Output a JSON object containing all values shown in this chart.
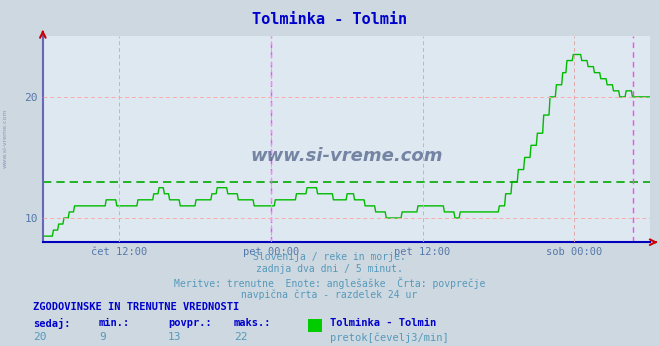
{
  "title": "Tolminka - Tolmin",
  "title_color": "#0000cc",
  "bg_color": "#cdd8e0",
  "plot_bg_color": "#dde8f0",
  "line_color": "#00bb00",
  "avg_line_color": "#00aa00",
  "avg_value": 13,
  "grid_color_h": "#ffaaaa",
  "grid_color_v": "#ddaaaa",
  "vline_color": "#ff44ff",
  "bottom_spine_color": "#0000bb",
  "left_spine_color": "#6666bb",
  "arrow_color": "#cc0000",
  "ylim_min": 8,
  "ylim_max": 25,
  "yticks": [
    10,
    20
  ],
  "x_tick_labels": [
    "čet 12:00",
    "pet 00:00",
    "pet 12:00",
    "sob 00:00"
  ],
  "x_tick_positions": [
    0.125,
    0.375,
    0.625,
    0.875
  ],
  "vline_positions": [
    0.375,
    0.972
  ],
  "subtitle_lines": [
    "Slovenija / reke in morje.",
    "zadnja dva dni / 5 minut.",
    "Meritve: trenutne  Enote: anglešaške  Črta: povprečje",
    "navpična črta - razdelek 24 ur"
  ],
  "subtitle_color": "#5599bb",
  "bottom_label": "ZGODOVINSKE IN TRENUTNE VREDNOSTI",
  "bottom_label_color": "#0000cc",
  "stats_row1": [
    "sedaj:",
    "min.:",
    "povpr.:",
    "maks.:"
  ],
  "stats_row2": [
    "20",
    "9",
    "13",
    "22"
  ],
  "stats_label_color": "#0000cc",
  "stats_value_color": "#5599bb",
  "legend_name": "Tolminka - Tolmin",
  "legend_unit": "pretok[čevelj3/min]",
  "legend_box_color": "#00cc00",
  "watermark": "www.si-vreme.com",
  "watermark_color": "#223366",
  "side_watermark_color": "#8899bb",
  "tick_label_color": "#5577aa"
}
